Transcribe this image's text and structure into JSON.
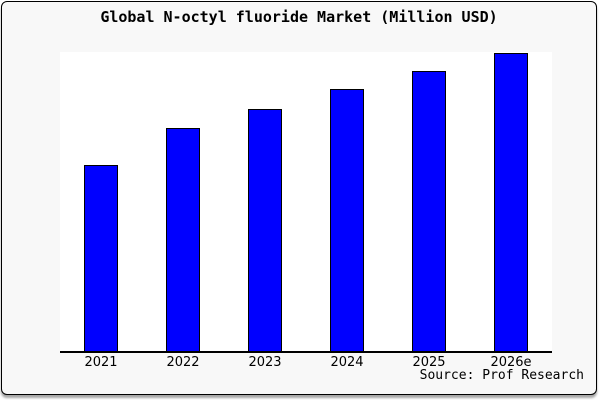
{
  "window": {
    "background": "#f8f8f8",
    "border_color": "#000000",
    "plot_background": "#ffffff"
  },
  "chart_data": {
    "type": "bar",
    "title": "Global N-octyl fluoride Market (Million USD)",
    "categories": [
      "2021",
      "2022",
      "2023",
      "2024",
      "2025",
      "2026e"
    ],
    "values": [
      62.5,
      74.8,
      81.2,
      88.0,
      94.1,
      100.0
    ],
    "xlabel": "",
    "ylabel": "",
    "ylim": [
      0,
      100.5
    ],
    "grid": false,
    "legend": null,
    "y_axis_labels_visible": false,
    "note": "y-axis is unlabeled in source image; values estimated from bar heights relative to 2026e = 100",
    "bar_color": "#0000ff",
    "bar_border_color": "#000000",
    "source": "Source: Prof Research"
  }
}
